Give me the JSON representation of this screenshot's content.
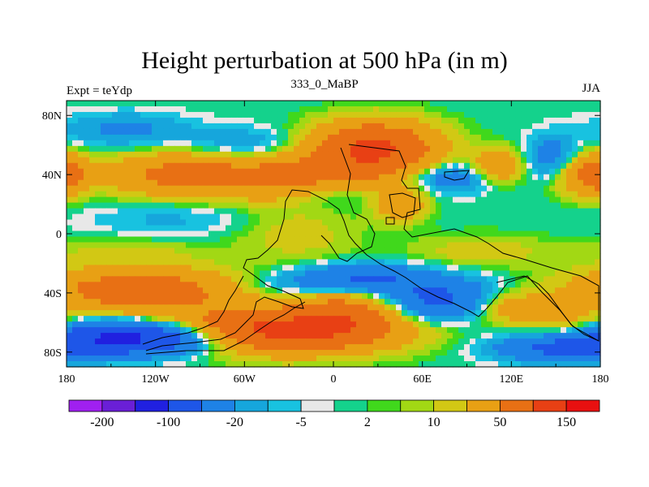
{
  "chart_data": {
    "type": "heatmap",
    "title": "Height perturbation at 500 hPa (in m)",
    "left_label": "Expt = teYdp",
    "center_label": "333_0_MaBP",
    "right_label": "JJA",
    "x_range": [
      -180,
      180
    ],
    "y_range": [
      -90,
      90
    ],
    "x_ticks": [
      {
        "value": -180,
        "label": "180"
      },
      {
        "value": -120,
        "label": "120W"
      },
      {
        "value": -60,
        "label": "60W"
      },
      {
        "value": 0,
        "label": "0"
      },
      {
        "value": 60,
        "label": "60E"
      },
      {
        "value": 120,
        "label": "120E"
      },
      {
        "value": 180,
        "label": "180"
      }
    ],
    "y_ticks": [
      {
        "value": 80,
        "label": "80N"
      },
      {
        "value": 40,
        "label": "40N"
      },
      {
        "value": 0,
        "label": "0"
      },
      {
        "value": -40,
        "label": "40S"
      },
      {
        "value": -80,
        "label": "80S"
      }
    ],
    "colorbar": {
      "colors": [
        "#a020f0",
        "#6a1fd6",
        "#2020e0",
        "#1e56e8",
        "#1e82e6",
        "#16a6dc",
        "#18c2e0",
        "#e8e8e8",
        "#14d28c",
        "#40d81c",
        "#a2d814",
        "#d2c814",
        "#e8a014",
        "#e87014",
        "#e84014",
        "#e81010"
      ],
      "labels": [
        {
          "text": "-200",
          "boundary": 1
        },
        {
          "text": "-100",
          "boundary": 3
        },
        {
          "text": "-20",
          "boundary": 5
        },
        {
          "text": "-5",
          "boundary": 7
        },
        {
          "text": "2",
          "boundary": 9
        },
        {
          "text": "10",
          "boundary": 11
        },
        {
          "text": "50",
          "boundary": 13
        },
        {
          "text": "150",
          "boundary": 15
        }
      ]
    },
    "features": [
      {
        "lon": -20,
        "lat": 38,
        "amp": 70,
        "sx": 40,
        "sy": 10
      },
      {
        "lon": -105,
        "lat": 40,
        "amp": 60,
        "sx": 35,
        "sy": 10
      },
      {
        "lon": 28,
        "lat": 58,
        "amp": 110,
        "sx": 28,
        "sy": 12
      },
      {
        "lon": 110,
        "lat": 45,
        "amp": 50,
        "sx": 12,
        "sy": 8
      },
      {
        "lon": 170,
        "lat": 40,
        "amp": 50,
        "sx": 14,
        "sy": 10
      },
      {
        "lon": -178,
        "lat": 40,
        "amp": 45,
        "sx": 8,
        "sy": 8
      },
      {
        "lon": 45,
        "lat": 20,
        "amp": 40,
        "sx": 12,
        "sy": 8
      },
      {
        "lon": -140,
        "lat": 70,
        "amp": -25,
        "sx": 30,
        "sy": 8
      },
      {
        "lon": -60,
        "lat": 60,
        "amp": -20,
        "sx": 25,
        "sy": 8
      },
      {
        "lon": 0,
        "lat": 30,
        "amp": -30,
        "sx": 25,
        "sy": 8
      },
      {
        "lon": 80,
        "lat": 38,
        "amp": -40,
        "sx": 22,
        "sy": 7
      },
      {
        "lon": 148,
        "lat": 52,
        "amp": -35,
        "sx": 12,
        "sy": 10
      },
      {
        "lon": -110,
        "lat": 10,
        "amp": -12,
        "sx": 40,
        "sy": 8
      },
      {
        "lon": -140,
        "lat": -12,
        "amp": 12,
        "sx": 35,
        "sy": 6
      },
      {
        "lon": 100,
        "lat": -12,
        "amp": 15,
        "sx": 35,
        "sy": 8
      },
      {
        "lon": -25,
        "lat": 0,
        "amp": 14,
        "sx": 30,
        "sy": 15
      },
      {
        "lon": -130,
        "lat": -38,
        "amp": 80,
        "sx": 45,
        "sy": 10
      },
      {
        "lon": -45,
        "lat": -66,
        "amp": 130,
        "sx": 55,
        "sy": 10
      },
      {
        "lon": 10,
        "lat": -52,
        "amp": 60,
        "sx": 25,
        "sy": 10
      },
      {
        "lon": 120,
        "lat": -50,
        "amp": 40,
        "sx": 20,
        "sy": 8
      },
      {
        "lon": 160,
        "lat": -62,
        "amp": 30,
        "sx": 20,
        "sy": 8
      },
      {
        "lon": 20,
        "lat": -28,
        "amp": -35,
        "sx": 30,
        "sy": 6
      },
      {
        "lon": 0,
        "lat": -34,
        "amp": -30,
        "sx": 40,
        "sy": 6
      },
      {
        "lon": 70,
        "lat": -45,
        "amp": -60,
        "sx": 30,
        "sy": 10
      },
      {
        "lon": -130,
        "lat": -70,
        "amp": -140,
        "sx": 45,
        "sy": 8
      },
      {
        "lon": 150,
        "lat": -78,
        "amp": -50,
        "sx": 30,
        "sy": 6
      }
    ]
  }
}
